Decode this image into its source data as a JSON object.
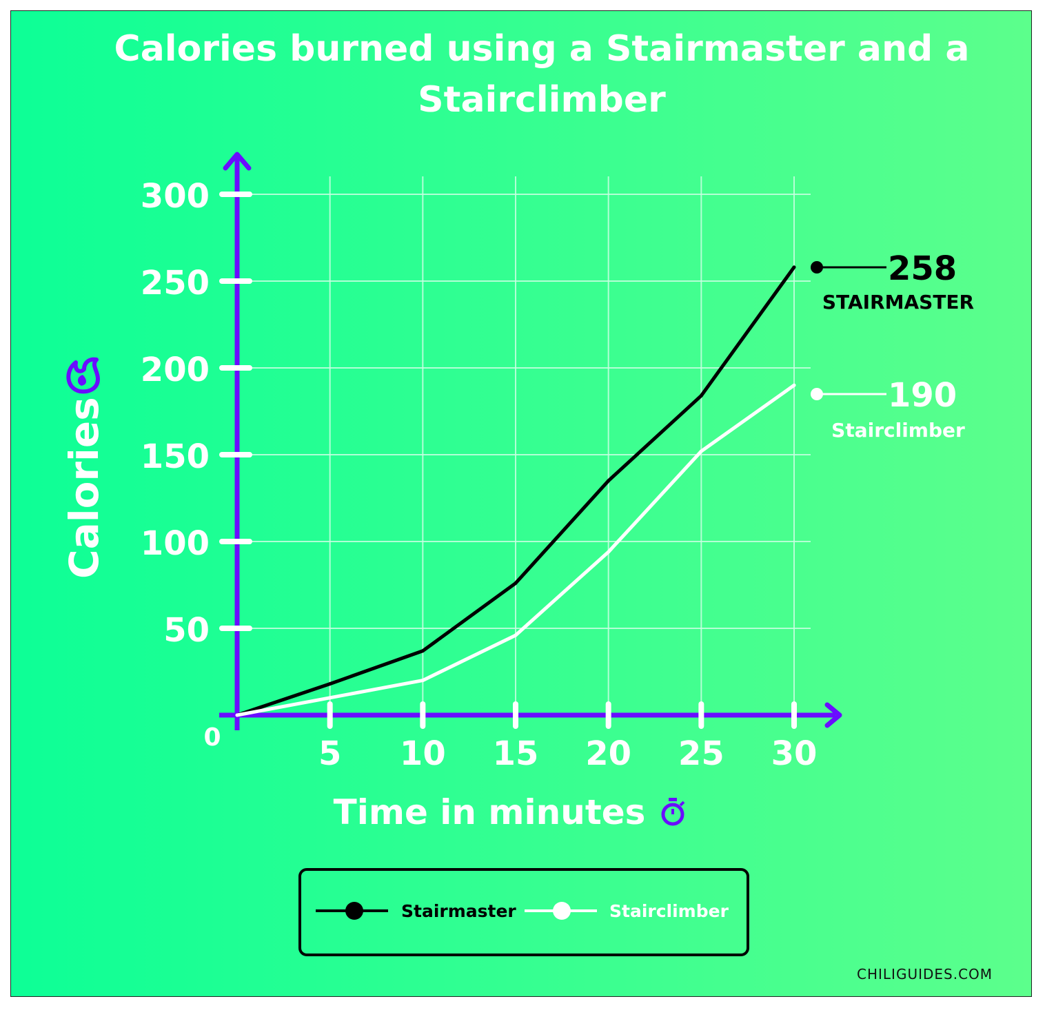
{
  "chart_data": {
    "type": "line",
    "title": "Calories burned using a Stairmaster and a Stairclimber",
    "xlabel": "Time in minutes",
    "ylabel": "Calories",
    "x": [
      0,
      5,
      10,
      15,
      20,
      25,
      30
    ],
    "x_ticks": [
      5,
      10,
      15,
      20,
      25,
      30
    ],
    "y_ticks": [
      50,
      100,
      150,
      200,
      250,
      300
    ],
    "origin_label": "0",
    "xlim": [
      0,
      30
    ],
    "ylim": [
      0,
      300
    ],
    "grid": true,
    "legend_position": "bottom-center",
    "series": [
      {
        "name": "Stairmaster",
        "values": [
          0,
          18,
          37,
          76,
          135,
          184,
          258
        ],
        "color": "#000000",
        "end_value": "258",
        "end_label": "STAIRMASTER"
      },
      {
        "name": "Stairclimber",
        "values": [
          0,
          10,
          20,
          46,
          94,
          152,
          190
        ],
        "color": "#ffffff",
        "end_value": "190",
        "end_label": "Stairclimber"
      }
    ]
  },
  "icons": {
    "y_axis": "flame-icon",
    "x_axis": "stopwatch-icon"
  },
  "colors": {
    "background_start": "#0dff96",
    "background_end": "#5cff8c",
    "axis": "#6a0dff",
    "grid": "#c9ffe2",
    "text": "#ffffff"
  },
  "credit": "CHILIGUIDES.COM"
}
